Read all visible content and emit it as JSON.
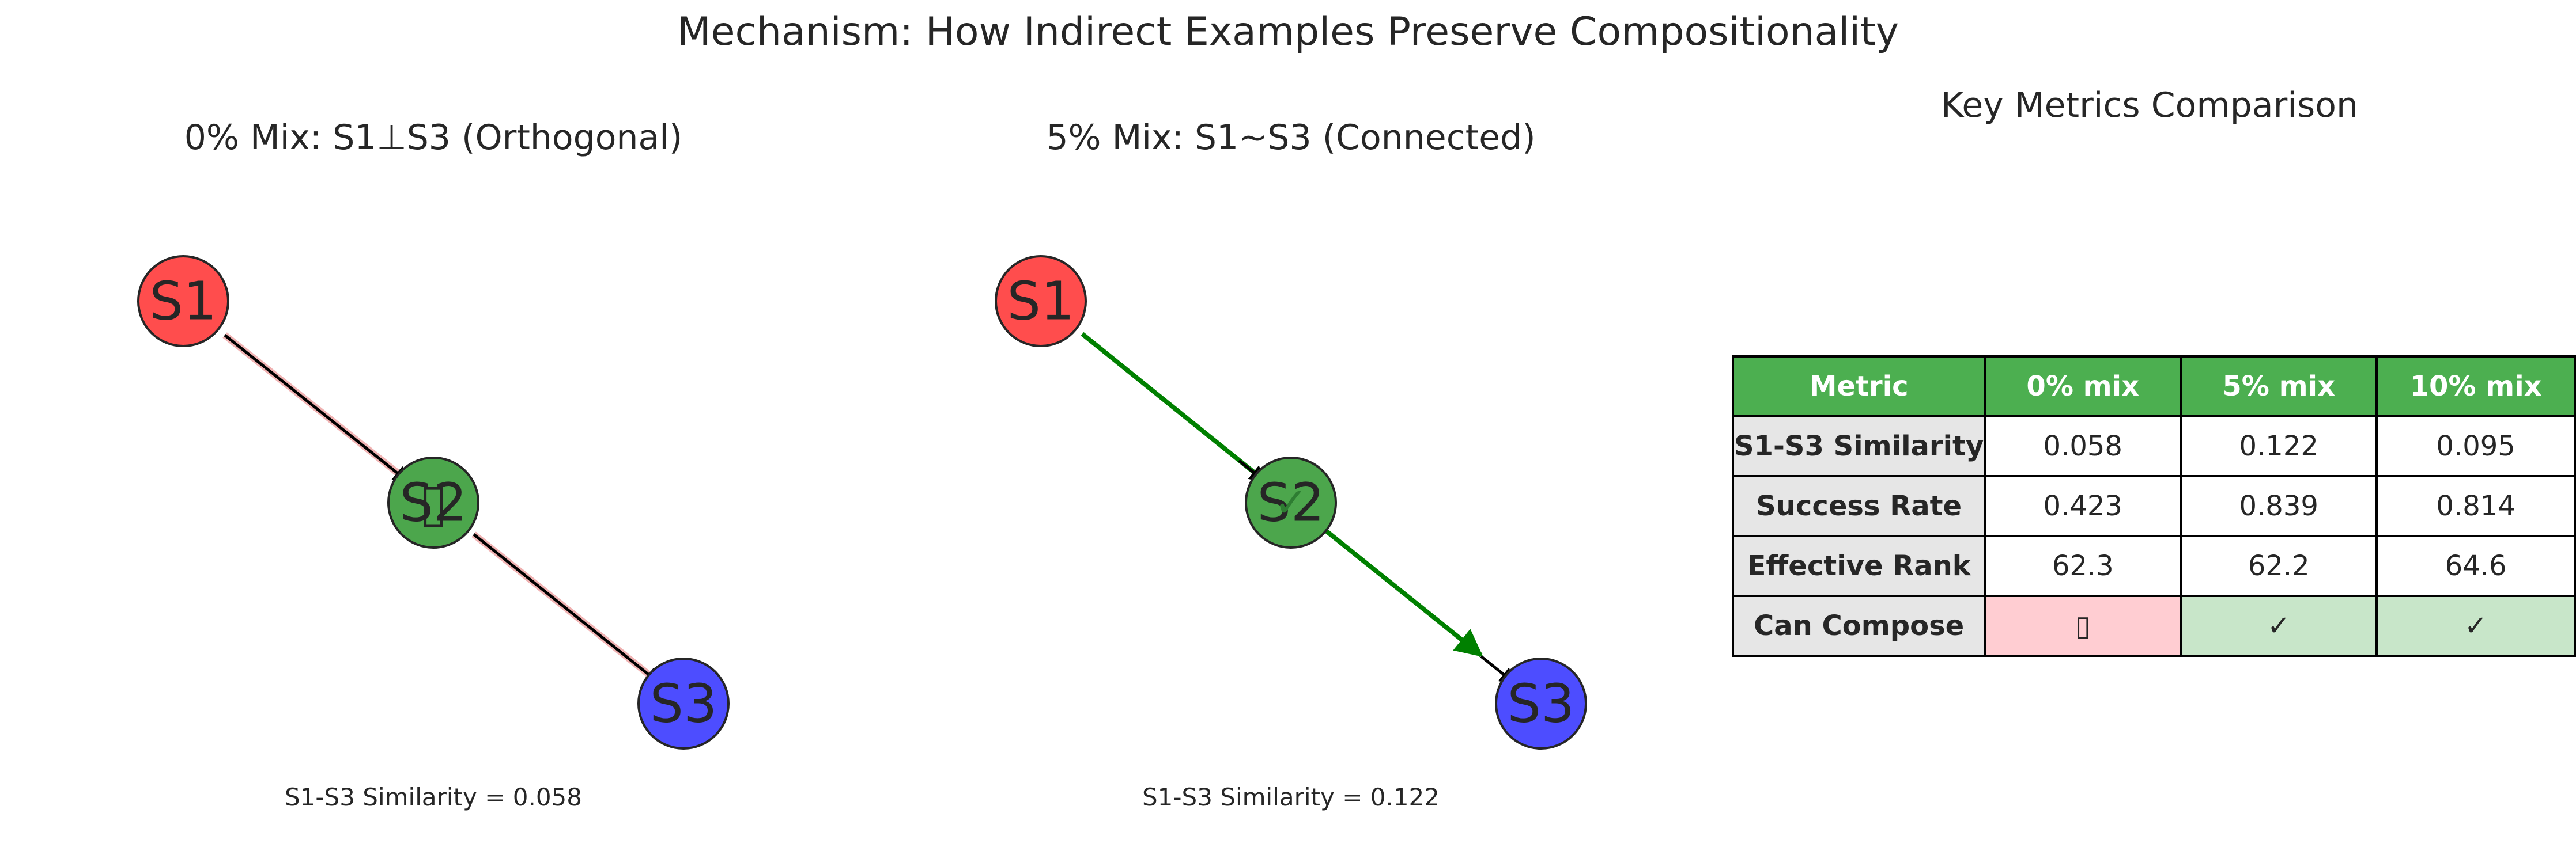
{
  "figure": {
    "suptitle": "Mechanism: How Indirect Examples Preserve Compositionality"
  },
  "panels": [
    {
      "title": "0% Mix: S1⊥S3 (Orthogonal)",
      "caption": "S1-S3 Similarity = 0.058",
      "nodes": [
        "S1",
        "S2",
        "S3"
      ],
      "edge_color_direct": "#d62728",
      "overlay_glyph": "▯"
    },
    {
      "title": "5% Mix: S1~S3 (Connected)",
      "caption": "S1-S3 Similarity = 0.122",
      "nodes": [
        "S1",
        "S2",
        "S3"
      ],
      "edge_color_direct": "#008000",
      "overlay_glyph": "✓"
    }
  ],
  "colors": {
    "s1": "#ff4d4d",
    "s2": "#4ca64c",
    "s3": "#4d4dff",
    "header": "#4caf50",
    "row_header": "#e6e6e6",
    "bad": "#ffcdd2",
    "good": "#c8e6c9"
  },
  "table": {
    "title": "Key Metrics Comparison",
    "headers": [
      "Metric",
      "0% mix",
      "5% mix",
      "10% mix"
    ],
    "rows": [
      [
        "S1-S3 Similarity",
        "0.058",
        "0.122",
        "0.095"
      ],
      [
        "Success Rate",
        "0.423",
        "0.839",
        "0.814"
      ],
      [
        "Effective Rank",
        "62.3",
        "62.2",
        "64.6"
      ],
      [
        "Can Compose",
        "▯",
        "✓",
        "✓"
      ]
    ]
  }
}
